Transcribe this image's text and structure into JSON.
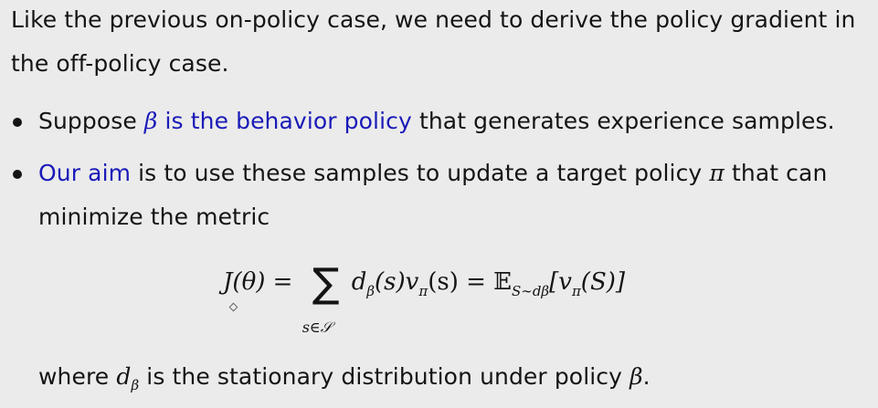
{
  "intro": {
    "line1": "Like the previous on-policy case, we need to derive the policy gradient in",
    "line2": "the off-policy case."
  },
  "bullet1": {
    "prefix": "Suppose",
    "beta_symbol": "β",
    "highlight": "is the behavior policy",
    "suffix": "that generates experience samples."
  },
  "bullet2": {
    "highlight": "Our aim",
    "text": "is to use these samples to update a target policy",
    "pi_symbol": "π",
    "text_end": "that can",
    "line2": "minimize the metric"
  },
  "formula": {
    "lhs": "J(θ) =",
    "sum_symbol": "∑",
    "sum_limit": "s∈𝒮",
    "term_d": "d",
    "term_d_sub": "β",
    "term_mid": "(s)v",
    "term_v_sub": "π",
    "term_end": "(s) = 𝔼",
    "expect_sub": "S∼dβ",
    "bracket": "[v",
    "bracket_sub": "π",
    "bracket_end": "(S)]"
  },
  "footer": {
    "prefix": "where",
    "d_symbol": "d",
    "d_sub": "β",
    "text": "is the stationary distribution under policy",
    "beta_symbol": "β",
    "end": "."
  },
  "colors": {
    "background": "#ebebeb",
    "text": "#141414",
    "highlight_blue": "#1a1ab8"
  }
}
